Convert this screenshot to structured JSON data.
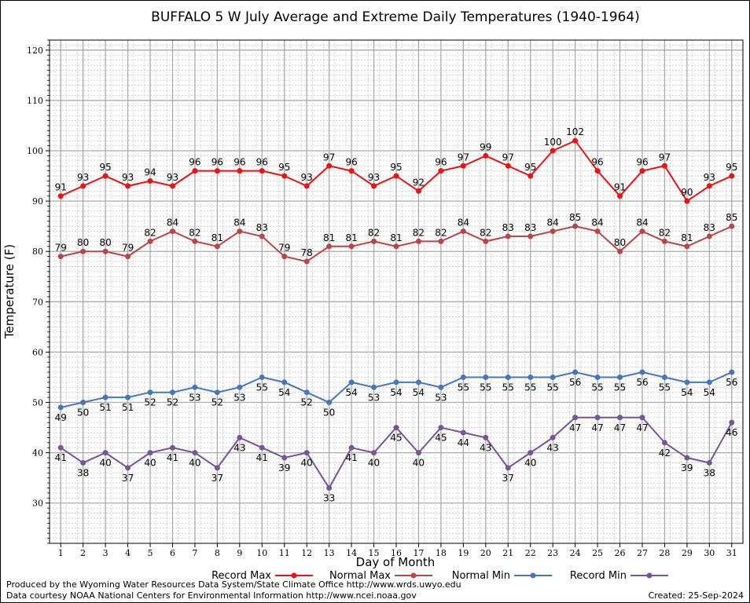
{
  "chart_data": {
    "type": "line",
    "title": "BUFFALO 5 W July Average and Extreme Daily Temperatures (1940-1964)",
    "xlabel": "Day of Month",
    "ylabel": "Temperature (F)",
    "x": [
      1,
      2,
      3,
      4,
      5,
      6,
      7,
      8,
      9,
      10,
      11,
      12,
      13,
      14,
      15,
      16,
      17,
      18,
      19,
      20,
      21,
      22,
      23,
      24,
      25,
      26,
      27,
      28,
      29,
      30,
      31
    ],
    "xlim": [
      0.5,
      31.5
    ],
    "ylim": [
      22,
      122
    ],
    "yticks": [
      30,
      40,
      50,
      60,
      70,
      80,
      90,
      100,
      110,
      120
    ],
    "grid": true,
    "legend_position": "bottom",
    "series": [
      {
        "name": "Record Max",
        "color": "#ee1111",
        "values": [
          91,
          93,
          95,
          93,
          94,
          93,
          96,
          96,
          96,
          96,
          95,
          93,
          97,
          96,
          93,
          95,
          92,
          96,
          97,
          99,
          97,
          95,
          100,
          102,
          96,
          91,
          96,
          97,
          90,
          93,
          95
        ]
      },
      {
        "name": "Normal Max",
        "color": "#bb4444",
        "values": [
          79,
          80,
          80,
          79,
          82,
          84,
          82,
          81,
          84,
          83,
          79,
          78,
          81,
          81,
          82,
          81,
          82,
          82,
          84,
          82,
          83,
          83,
          84,
          85,
          84,
          80,
          84,
          82,
          81,
          83,
          85
        ]
      },
      {
        "name": "Normal Min",
        "color": "#4477bb",
        "values": [
          49,
          50,
          51,
          51,
          52,
          52,
          53,
          52,
          53,
          55,
          54,
          52,
          50,
          54,
          53,
          54,
          54,
          53,
          55,
          55,
          55,
          55,
          55,
          56,
          55,
          55,
          56,
          55,
          54,
          54,
          56
        ]
      },
      {
        "name": "Record Min",
        "color": "#775599",
        "values": [
          41,
          38,
          40,
          37,
          40,
          41,
          40,
          37,
          43,
          41,
          39,
          40,
          33,
          41,
          40,
          45,
          40,
          45,
          44,
          43,
          37,
          40,
          43,
          47,
          47,
          47,
          47,
          42,
          39,
          38,
          46
        ]
      }
    ]
  },
  "footer": {
    "produced_by": "Produced by the Wyoming Water Resources Data System/State Climate Office http://www.wrds.uwyo.edu",
    "data_courtesy": "Data courtesy NOAA National Centers for Environmental Information http://www.ncei.noaa.gov",
    "created": "Created:  25-Sep-2024"
  }
}
